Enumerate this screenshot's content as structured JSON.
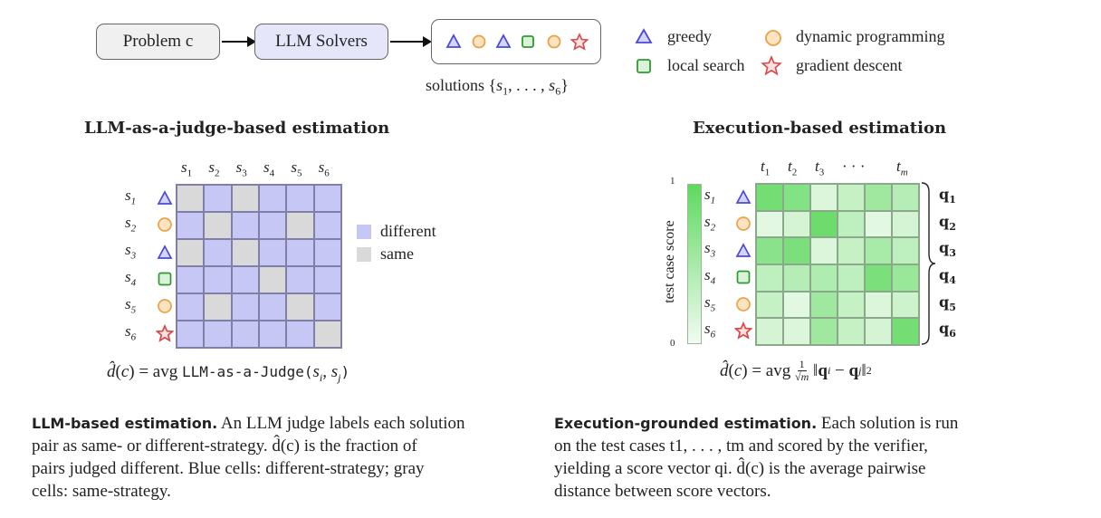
{
  "pipeline": {
    "problem_label": "Problem c",
    "solvers_label": "LLM Solvers",
    "solutions_label": "solutions {s1, . . . , s6}"
  },
  "legend_top": {
    "greedy": "greedy",
    "dynamic_programming": "dynamic programming",
    "local_search": "local search",
    "gradient_descent": "gradient descent"
  },
  "left": {
    "title": "LLM-as-a-judge-based estimation",
    "col_labels": [
      "s1",
      "s2",
      "s3",
      "s4",
      "s5",
      "s6"
    ],
    "row_labels": [
      "s1",
      "s2",
      "s3",
      "s4",
      "s5",
      "s6"
    ],
    "row_icons": [
      "triangle",
      "circle",
      "triangle",
      "square",
      "circle",
      "star"
    ],
    "legend_different": "different",
    "legend_same": "same",
    "formula_lhs": "d̂(c) = avg ",
    "formula_fn": "LLM-as-a-Judge(s",
    "formula_args": "i, sj)",
    "matrix": [
      [
        "same",
        "diff",
        "same",
        "diff",
        "diff",
        "diff"
      ],
      [
        "diff",
        "same",
        "diff",
        "diff",
        "same",
        "diff"
      ],
      [
        "same",
        "diff",
        "same",
        "diff",
        "diff",
        "diff"
      ],
      [
        "diff",
        "diff",
        "diff",
        "same",
        "diff",
        "diff"
      ],
      [
        "diff",
        "same",
        "diff",
        "diff",
        "same",
        "diff"
      ],
      [
        "diff",
        "diff",
        "diff",
        "diff",
        "diff",
        "same"
      ]
    ],
    "colors": {
      "different": "#c7c7f5",
      "same": "#d9d9d9"
    }
  },
  "right": {
    "title": "Execution-based estimation",
    "col_labels": [
      "t1",
      "t2",
      "t3",
      "· · ·",
      "",
      "tm"
    ],
    "row_labels": [
      "s1",
      "s2",
      "s3",
      "s4",
      "s5",
      "s6"
    ],
    "row_icons": [
      "triangle",
      "circle",
      "triangle",
      "square",
      "circle",
      "star"
    ],
    "q_labels": [
      "q1",
      "q2",
      "q3",
      "q4",
      "q5",
      "q6"
    ],
    "colorbar_label": "test case score",
    "colorbar_max": "1",
    "colorbar_min": "0",
    "formula": "d̂(c) = avg (1/√m) ‖qi − qj‖2",
    "scores": [
      [
        0.85,
        0.75,
        0.15,
        0.3,
        0.55,
        0.4
      ],
      [
        0.1,
        0.2,
        0.9,
        0.35,
        0.1,
        0.2
      ],
      [
        0.7,
        0.8,
        0.15,
        0.3,
        0.5,
        0.35
      ],
      [
        0.35,
        0.4,
        0.45,
        0.35,
        0.8,
        0.6
      ],
      [
        0.3,
        0.1,
        0.55,
        0.3,
        0.15,
        0.25
      ],
      [
        0.2,
        0.15,
        0.55,
        0.3,
        0.2,
        0.85
      ]
    ]
  },
  "captions": {
    "left_lead": "LLM-based estimation.",
    "left_text_1": " An LLM judge labels each solution",
    "left_text_2": "pair as same- or different-strategy. d̂(c) is the fraction of",
    "left_text_3": "pairs judged different. Blue cells: different-strategy; gray",
    "left_text_4": "cells: same-strategy.",
    "right_lead": "Execution-grounded estimation.",
    "right_text_1": " Each solution is run",
    "right_text_2": "on the test cases t1, . . . , tm and scored by the verifier,",
    "right_text_3": "yielding a score vector qi. d̂(c) is the average pairwise",
    "right_text_4": "distance between score vectors."
  }
}
